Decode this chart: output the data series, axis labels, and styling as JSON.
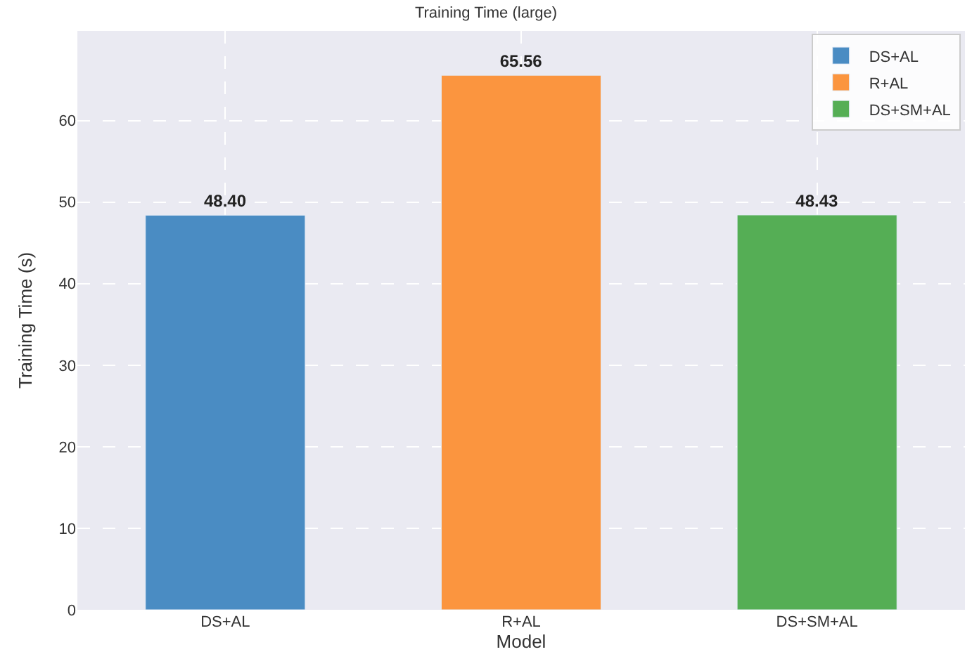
{
  "chart_data": {
    "type": "bar",
    "title": "Training Time (large)",
    "xlabel": "Model",
    "ylabel": "Training Time (s)",
    "categories": [
      "DS+AL",
      "R+AL",
      "DS+SM+AL"
    ],
    "series": [
      {
        "name": "DS+AL",
        "color": "#4a8cc3",
        "values": [
          48.4,
          null,
          null
        ]
      },
      {
        "name": "R+AL",
        "color": "#fb953f",
        "values": [
          null,
          65.56,
          null
        ]
      },
      {
        "name": "DS+SM+AL",
        "color": "#55ae55",
        "values": [
          null,
          null,
          48.43
        ]
      }
    ],
    "value_labels": [
      "48.40",
      "65.56",
      "48.43"
    ],
    "ylim": [
      0,
      71
    ],
    "yticks": [
      0,
      10,
      20,
      30,
      40,
      50,
      60
    ],
    "grid": true,
    "legend": "top right"
  }
}
